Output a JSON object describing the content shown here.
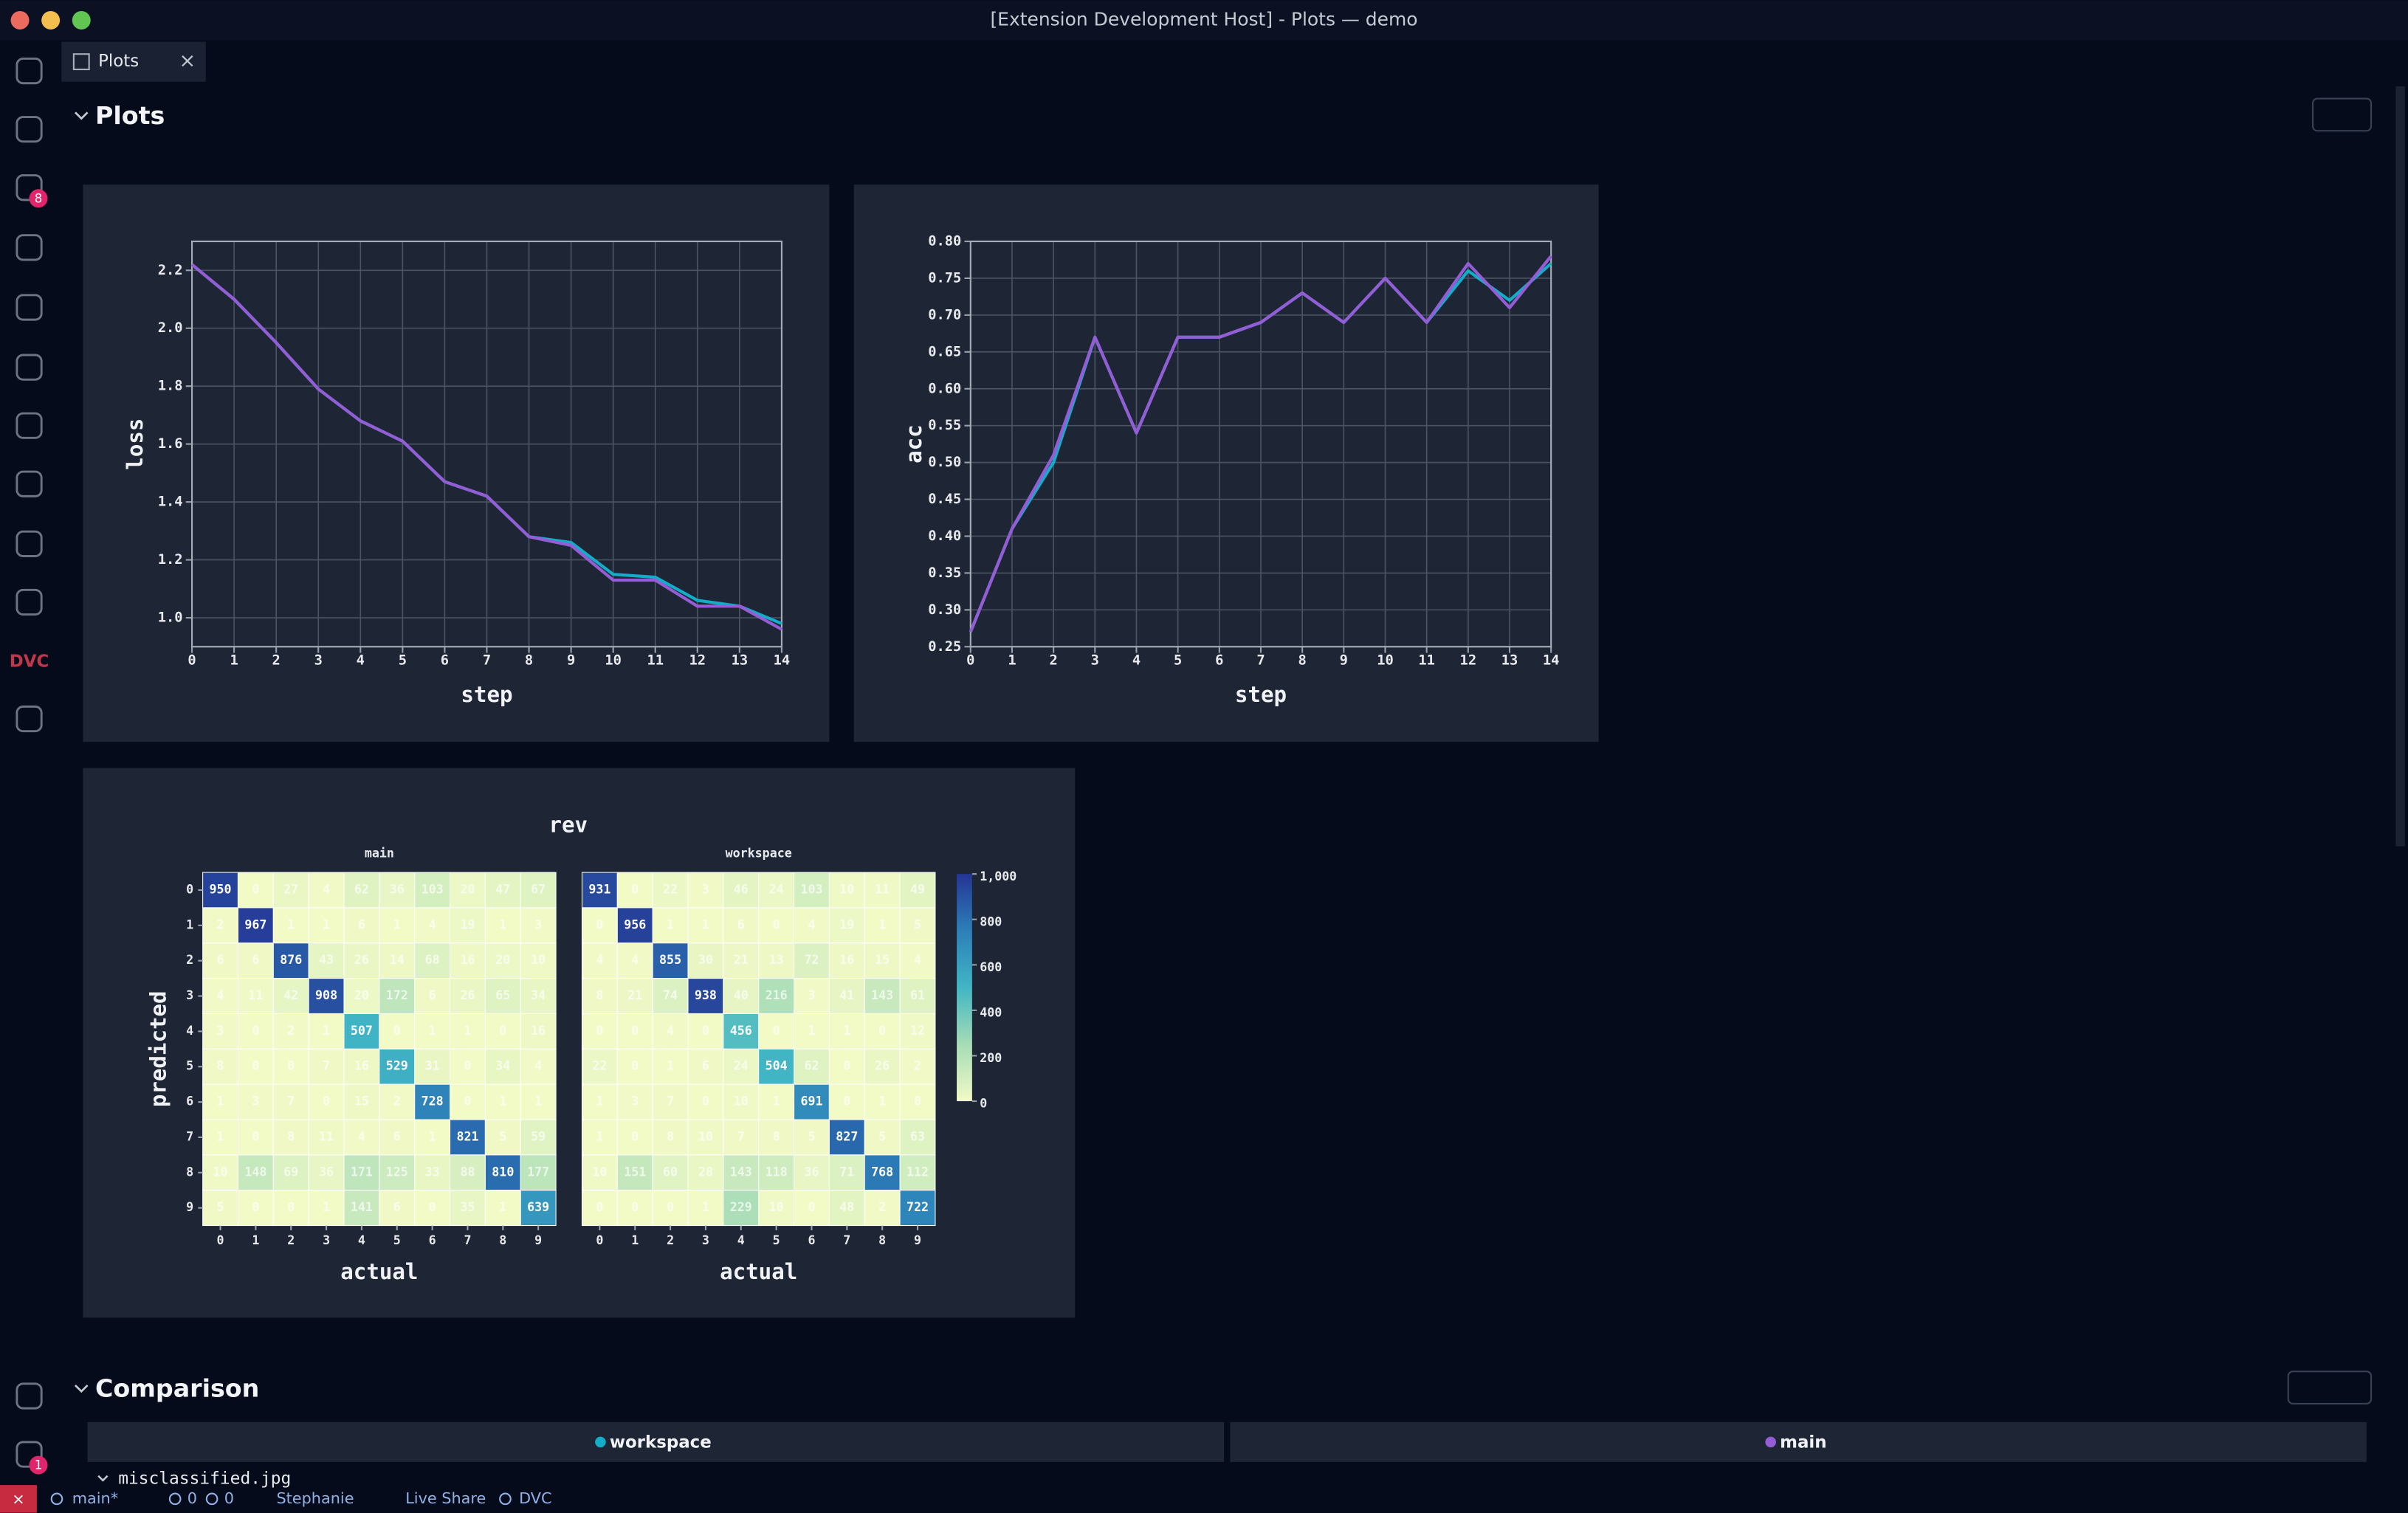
{
  "window": {
    "title": "[Extension Development Host] - Plots — demo"
  },
  "tab": {
    "label": "Plots"
  },
  "activity_bar": {
    "dvc_label": "DVC",
    "source_control_badge": "8",
    "settings_badge": "1"
  },
  "sections": {
    "plots": "Plots",
    "comparison": "Comparison"
  },
  "plots": {
    "line_charts": [
      {
        "type": "line",
        "xlabel": "step",
        "ylabel": "loss",
        "x": [
          0,
          1,
          2,
          3,
          4,
          5,
          6,
          7,
          8,
          9,
          10,
          11,
          12,
          13,
          14
        ],
        "xlim": [
          0,
          14
        ],
        "xticks": [
          0,
          1,
          2,
          3,
          4,
          5,
          6,
          7,
          8,
          9,
          10,
          11,
          12,
          13,
          14
        ],
        "ylim": [
          0.9,
          2.3
        ],
        "yticks": [
          {
            "value": 1,
            "label": "1.0"
          },
          1.2,
          1.4,
          1.6,
          1.8,
          {
            "value": 2,
            "label": "2.0"
          },
          2.2
        ],
        "grid": true,
        "series": [
          {
            "color": "#13adc7",
            "values": [
              2.22,
              2.1,
              1.95,
              1.79,
              1.68,
              1.61,
              1.47,
              1.42,
              1.28,
              1.26,
              1.15,
              1.14,
              1.06,
              1.04,
              0.98
            ]
          },
          {
            "color": "#945dd6",
            "values": [
              2.22,
              2.1,
              1.95,
              1.79,
              1.68,
              1.61,
              1.47,
              1.42,
              1.28,
              1.25,
              1.13,
              1.13,
              1.04,
              1.04,
              0.96
            ]
          }
        ]
      },
      {
        "type": "line",
        "xlabel": "step",
        "ylabel": "acc",
        "x": [
          0,
          1,
          2,
          3,
          4,
          5,
          6,
          7,
          8,
          9,
          10,
          11,
          12,
          13,
          14
        ],
        "xlim": [
          0,
          14
        ],
        "xticks": [
          0,
          1,
          2,
          3,
          4,
          5,
          6,
          7,
          8,
          9,
          10,
          11,
          12,
          13,
          14
        ],
        "ylim": [
          0.25,
          0.8
        ],
        "yticks": [
          0.25,
          {
            "value": 0.3,
            "label": "0.30"
          },
          0.35,
          {
            "value": 0.4,
            "label": "0.40"
          },
          0.45,
          {
            "value": 0.5,
            "label": "0.50"
          },
          0.55,
          {
            "value": 0.6,
            "label": "0.60"
          },
          0.65,
          {
            "value": 0.7,
            "label": "0.70"
          },
          0.75,
          {
            "value": 0.8,
            "label": "0.80"
          }
        ],
        "grid": true,
        "series": [
          {
            "color": "#13adc7",
            "values": [
              0.27,
              0.41,
              0.5,
              0.67,
              0.54,
              0.67,
              0.67,
              0.69,
              0.73,
              0.69,
              0.75,
              0.69,
              0.76,
              0.72,
              0.77
            ]
          },
          {
            "color": "#945dd6",
            "values": [
              0.27,
              0.41,
              0.51,
              0.67,
              0.54,
              0.67,
              0.67,
              0.69,
              0.73,
              0.69,
              0.75,
              0.69,
              0.77,
              0.71,
              0.78
            ]
          }
        ]
      }
    ],
    "confusion": {
      "type": "heatmap",
      "title": "rev",
      "xlabel": "actual",
      "ylabel": "predicted",
      "xticks": [
        0,
        1,
        2,
        3,
        4,
        5,
        6,
        7,
        8,
        9
      ],
      "yticks": [
        0,
        1,
        2,
        3,
        4,
        5,
        6,
        7,
        8,
        9
      ],
      "colorbar": {
        "lim": [
          0,
          1000
        ],
        "ticks": [
          0,
          200,
          400,
          600,
          800,
          {
            "value": 1000,
            "label": "1,000"
          }
        ],
        "colors": [
          "#f2fac6",
          "#a6dcb6",
          "#41b6c4",
          "#2c7fb8",
          "#253494"
        ]
      },
      "panels": [
        {
          "title": "main",
          "values": [
            [
              950,
              0,
              27,
              4,
              62,
              36,
              103,
              20,
              47,
              67
            ],
            [
              2,
              967,
              1,
              1,
              6,
              1,
              4,
              19,
              1,
              3
            ],
            [
              6,
              6,
              876,
              43,
              26,
              14,
              68,
              16,
              20,
              10
            ],
            [
              4,
              11,
              42,
              908,
              20,
              172,
              6,
              26,
              65,
              34
            ],
            [
              3,
              0,
              2,
              1,
              507,
              0,
              1,
              1,
              0,
              16
            ],
            [
              8,
              0,
              0,
              7,
              16,
              529,
              31,
              0,
              34,
              4
            ],
            [
              1,
              3,
              7,
              0,
              15,
              2,
              728,
              0,
              1,
              1
            ],
            [
              1,
              0,
              8,
              11,
              4,
              6,
              1,
              821,
              5,
              59
            ],
            [
              10,
              148,
              69,
              36,
              171,
              125,
              33,
              88,
              810,
              177
            ],
            [
              5,
              0,
              0,
              1,
              141,
              6,
              0,
              35,
              1,
              639
            ]
          ]
        },
        {
          "title": "workspace",
          "values": [
            [
              931,
              0,
              22,
              3,
              46,
              24,
              103,
              10,
              11,
              49
            ],
            [
              0,
              956,
              1,
              1,
              6,
              0,
              4,
              19,
              1,
              5
            ],
            [
              4,
              4,
              855,
              30,
              21,
              13,
              72,
              16,
              15,
              4
            ],
            [
              8,
              21,
              74,
              938,
              40,
              216,
              3,
              41,
              143,
              61
            ],
            [
              0,
              0,
              4,
              0,
              456,
              0,
              1,
              1,
              0,
              12
            ],
            [
              22,
              0,
              1,
              6,
              24,
              504,
              62,
              0,
              26,
              2
            ],
            [
              1,
              3,
              7,
              0,
              10,
              1,
              691,
              0,
              1,
              0
            ],
            [
              1,
              0,
              8,
              10,
              7,
              8,
              5,
              827,
              5,
              63
            ],
            [
              10,
              151,
              60,
              28,
              143,
              118,
              36,
              71,
              768,
              112
            ],
            [
              0,
              0,
              0,
              1,
              229,
              10,
              0,
              48,
              2,
              722
            ]
          ]
        }
      ]
    }
  },
  "comparison": {
    "columns": [
      {
        "name": "workspace",
        "color": "#13adc7"
      },
      {
        "name": "main",
        "color": "#945dd6"
      }
    ],
    "row_label": "misclassified.jpg"
  },
  "status_bar": {
    "branch": "main*",
    "errors": "0",
    "warnings": "0",
    "user": "Stephanie",
    "live_share": "Live Share",
    "dvc": "DVC"
  }
}
